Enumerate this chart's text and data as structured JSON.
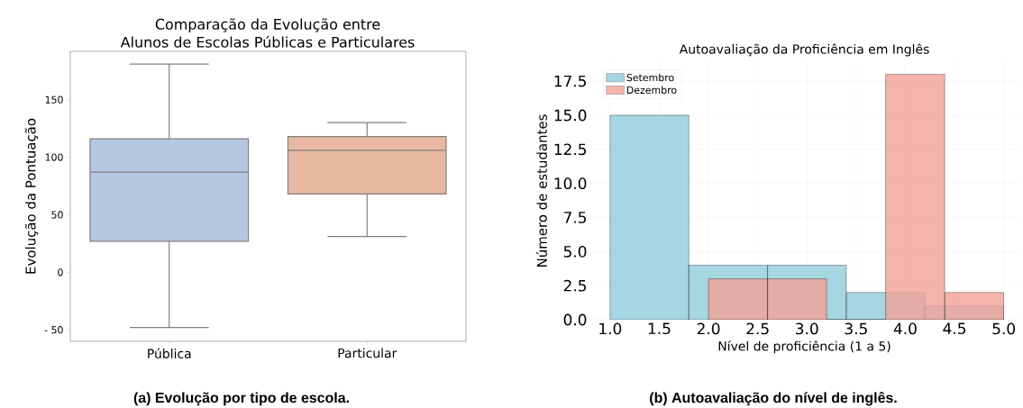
{
  "chart_data": [
    {
      "type": "box",
      "title": "Comparação da Evolução entre Alunos de Escolas Públicas e Particulares",
      "ylabel": "Evolução da Pontuação",
      "categories": [
        "Pública",
        "Particular"
      ],
      "boxes": [
        {
          "low": -48,
          "q1": 27,
          "median": 87,
          "q3": 116,
          "high": 181
        },
        {
          "low": 31,
          "q1": 68,
          "median": 106,
          "q3": 118,
          "high": 130
        }
      ],
      "colors": [
        "#b5c8e2",
        "#e9b8a2"
      ],
      "ylim": [
        -60,
        192
      ],
      "yticks": [
        {
          "value": -50,
          "label": "- 50"
        },
        0,
        50,
        100,
        150
      ],
      "annotations": [
        "(a) Evolução por tipo de escola."
      ]
    },
    {
      "type": "histogram",
      "title": "Autoavaliação da Proficiência em Inglês",
      "xlabel": "Nível de proficiência (1 a 5)",
      "ylabel": "Número de estudantes",
      "series": [
        {
          "name": "Setembro",
          "color": "#a6d6e2",
          "values": [
            15,
            4,
            4,
            2,
            1
          ]
        },
        {
          "name": "Dezembro",
          "color": "#f3a196",
          "bins": [
            2.0,
            2.6,
            3.2,
            3.8,
            4.4,
            5.0
          ],
          "values": [
            3,
            3,
            0,
            18,
            2
          ]
        }
      ],
      "xlim": [
        0.8,
        5.15
      ],
      "xticks": [
        {
          "value": 1,
          "label": "1.0"
        },
        1.5,
        {
          "value": 2,
          "label": "2.0"
        },
        2.5,
        {
          "value": 3,
          "label": "3.0"
        },
        3.5,
        {
          "value": 4,
          "label": "4.0"
        },
        4.5,
        {
          "value": 5,
          "label": "5.0"
        }
      ],
      "ylim": [
        0,
        18.9
      ],
      "yticks": [
        {
          "value": 0,
          "label": "0.0"
        },
        2.5,
        {
          "value": 5,
          "label": "5.0"
        },
        7.5,
        {
          "value": 10,
          "label": "10.0"
        },
        12.5,
        {
          "value": 15,
          "label": "15.0"
        },
        17.5
      ],
      "bins": [
        1.0,
        1.8,
        2.6,
        3.4,
        4.2,
        5.0
      ],
      "grid": true,
      "legend": "top left",
      "annotations": [
        "(b) Autoavaliação do nível de inglês."
      ]
    }
  ]
}
